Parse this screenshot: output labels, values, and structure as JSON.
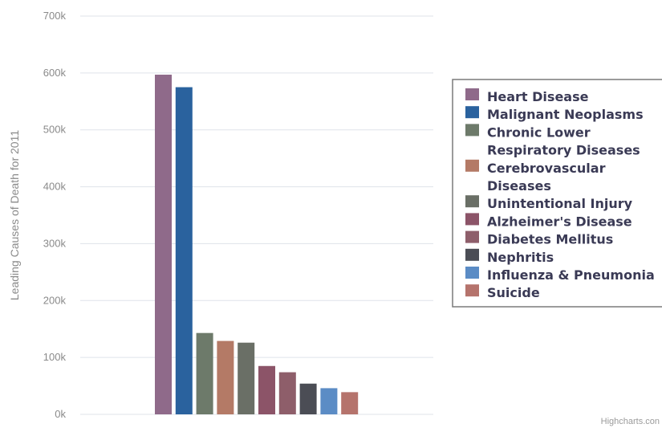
{
  "chart_data": {
    "type": "bar",
    "ylabel": "Leading Causes of Death for 2011",
    "xlabel": "",
    "ylim": [
      0,
      700000
    ],
    "y_ticks": [
      0,
      100000,
      200000,
      300000,
      400000,
      500000,
      600000,
      700000
    ],
    "y_tick_labels": [
      "0k",
      "100k",
      "200k",
      "300k",
      "400k",
      "500k",
      "600k",
      "700k"
    ],
    "grid": true,
    "legend_position": "right",
    "series": [
      {
        "name": "Heart Disease",
        "value": 597000,
        "color": "#8f6a8a"
      },
      {
        "name": "Malignant Neoplasms",
        "value": 575000,
        "color": "#2a629e"
      },
      {
        "name": "Chronic Lower Respiratory Diseases",
        "value": 143000,
        "color": "#6d7a6a"
      },
      {
        "name": "Cerebrovascular Diseases",
        "value": 129000,
        "color": "#b47a66"
      },
      {
        "name": "Unintentional Injury",
        "value": 126000,
        "color": "#6a6f66"
      },
      {
        "name": "Alzheimer's Disease",
        "value": 85000,
        "color": "#8c5468"
      },
      {
        "name": "Diabetes Mellitus",
        "value": 74000,
        "color": "#8e5e6a"
      },
      {
        "name": "Nephritis",
        "value": 54000,
        "color": "#4b4d55"
      },
      {
        "name": "Influenza & Pneumonia",
        "value": 46000,
        "color": "#5b8cc5"
      },
      {
        "name": "Suicide",
        "value": 39000,
        "color": "#b5736c"
      }
    ],
    "legend_lines": [
      [
        "Heart Disease"
      ],
      [
        "Malignant Neoplasms"
      ],
      [
        "Chronic Lower",
        "Respiratory Diseases"
      ],
      [
        "Cerebrovascular",
        "Diseases"
      ],
      [
        "Unintentional Injury"
      ],
      [
        "Alzheimer's Disease"
      ],
      [
        "Diabetes Mellitus"
      ],
      [
        "Nephritis"
      ],
      [
        "Influenza & Pneumonia"
      ],
      [
        "Suicide"
      ]
    ]
  },
  "credit": "Highcharts.con"
}
